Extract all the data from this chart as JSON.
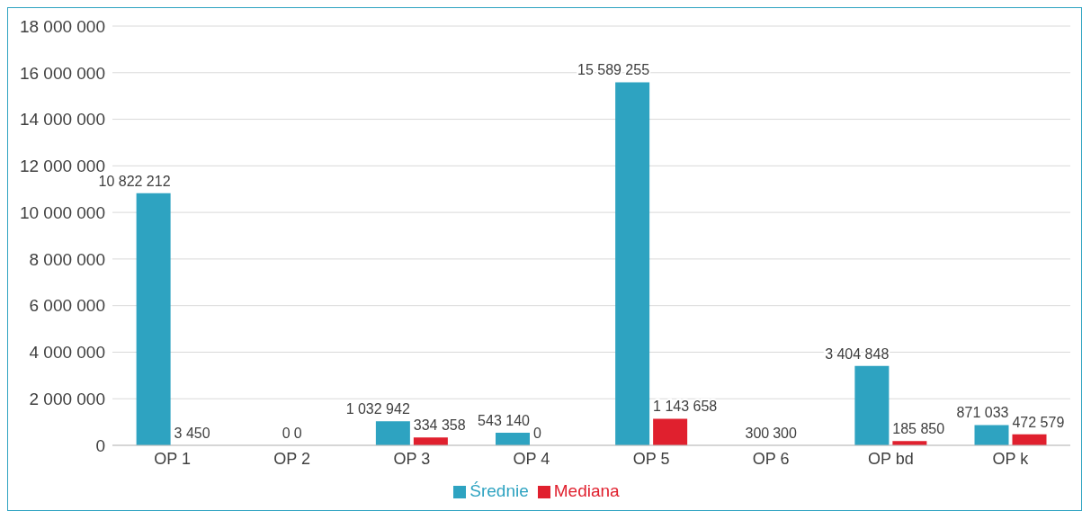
{
  "chart_data": {
    "type": "bar",
    "categories": [
      "OP 1",
      "OP 2",
      "OP 3",
      "OP 4",
      "OP 5",
      "OP 6",
      "OP bd",
      "OP k"
    ],
    "series": [
      {
        "name": "Średnie",
        "color": "#2ea3c1",
        "values": [
          10822212,
          0,
          1032942,
          543140,
          15589255,
          300,
          3404848,
          871033
        ]
      },
      {
        "name": "Mediana",
        "color": "#e0202e",
        "values": [
          3450,
          0,
          334358,
          0,
          1143658,
          300,
          185850,
          472579
        ]
      }
    ],
    "ylim": [
      0,
      18000000
    ],
    "yticks": [
      {
        "value": 0,
        "label": "0"
      },
      {
        "value": 2000000,
        "label": "2 000 000"
      },
      {
        "value": 4000000,
        "label": "4 000 000"
      },
      {
        "value": 6000000,
        "label": "6 000 000"
      },
      {
        "value": 8000000,
        "label": "8 000 000"
      },
      {
        "value": 10000000,
        "label": "10 000 000"
      },
      {
        "value": 12000000,
        "label": "12 000 000"
      },
      {
        "value": 14000000,
        "label": "14 000 000"
      },
      {
        "value": 16000000,
        "label": "16 000 000"
      },
      {
        "value": 18000000,
        "label": "18 000 000"
      }
    ],
    "grid": "y",
    "legend": "bottom",
    "data_labels": true
  }
}
